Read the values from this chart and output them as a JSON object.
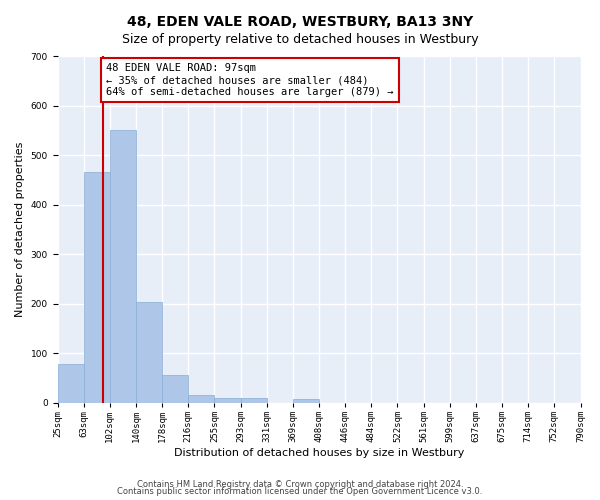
{
  "title": "48, EDEN VALE ROAD, WESTBURY, BA13 3NY",
  "subtitle": "Size of property relative to detached houses in Westbury",
  "xlabel": "Distribution of detached houses by size in Westbury",
  "ylabel": "Number of detached properties",
  "bar_values": [
    78,
    465,
    550,
    204,
    57,
    15,
    10,
    10,
    0,
    8,
    0,
    0,
    0,
    0,
    0,
    0,
    0,
    0,
    0,
    0
  ],
  "x_labels": [
    "25sqm",
    "63sqm",
    "102sqm",
    "140sqm",
    "178sqm",
    "216sqm",
    "255sqm",
    "293sqm",
    "331sqm",
    "369sqm",
    "408sqm",
    "446sqm",
    "484sqm",
    "522sqm",
    "561sqm",
    "599sqm",
    "637sqm",
    "675sqm",
    "714sqm",
    "752sqm",
    "790sqm"
  ],
  "bar_color": "#aec6e8",
  "bar_edge_color": "#8aadd4",
  "vline_color": "#cc0000",
  "vline_position": 1.72,
  "annotation_text": "48 EDEN VALE ROAD: 97sqm\n← 35% of detached houses are smaller (484)\n64% of semi-detached houses are larger (879) →",
  "annotation_box_color": "#ffffff",
  "annotation_box_edge_color": "#cc0000",
  "ylim": [
    0,
    700
  ],
  "yticks": [
    0,
    100,
    200,
    300,
    400,
    500,
    600,
    700
  ],
  "background_color": "#e8eef8",
  "grid_color": "#ffffff",
  "footer_line1": "Contains HM Land Registry data © Crown copyright and database right 2024.",
  "footer_line2": "Contains public sector information licensed under the Open Government Licence v3.0.",
  "title_fontsize": 10,
  "subtitle_fontsize": 9,
  "xlabel_fontsize": 8,
  "ylabel_fontsize": 8,
  "tick_fontsize": 6.5,
  "annotation_fontsize": 7.5,
  "footer_fontsize": 6
}
